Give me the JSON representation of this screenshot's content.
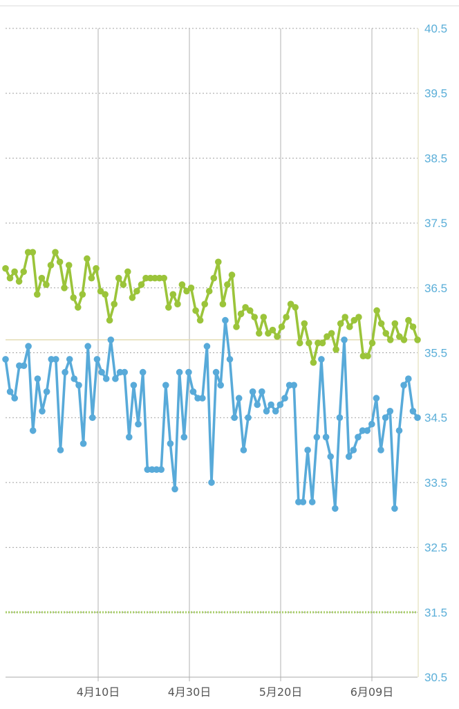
{
  "chart_data": {
    "type": "line",
    "title": "",
    "xlabel": "",
    "ylabel": "",
    "ylim": [
      30.5,
      40.5
    ],
    "yticks": [
      "40.5",
      "39.5",
      "38.5",
      "37.5",
      "36.5",
      "35.5",
      "34.5",
      "33.5",
      "32.5",
      "31.5",
      "30.5"
    ],
    "xticks": [
      "4月10日",
      "4月30日",
      "5月20日",
      "6月09日"
    ],
    "reference_lines": [
      {
        "value": 35.7,
        "color": "#e3dcb4",
        "style": "solid"
      },
      {
        "value": 31.5,
        "color": "#a9cf6a",
        "style": "dotted"
      }
    ],
    "series": [
      {
        "color": "#9bc43a",
        "values": [
          36.8,
          36.65,
          36.75,
          36.6,
          36.75,
          37.05,
          37.05,
          36.4,
          36.65,
          36.55,
          36.85,
          37.05,
          36.9,
          36.5,
          36.85,
          36.35,
          36.2,
          36.4,
          36.95,
          36.65,
          36.8,
          36.45,
          36.4,
          36.0,
          36.25,
          36.65,
          36.55,
          36.75,
          36.35,
          36.45,
          36.55,
          36.65,
          36.65,
          36.65,
          36.65,
          36.65,
          36.2,
          36.4,
          36.25,
          36.55,
          36.45,
          36.5,
          36.15,
          36.0,
          36.25,
          36.45,
          36.65,
          36.9,
          36.25,
          36.55,
          36.7,
          35.9,
          36.1,
          36.2,
          36.15,
          36.05,
          35.8,
          36.05,
          35.8,
          35.85,
          35.75,
          35.9,
          36.05,
          36.25,
          36.2,
          35.65,
          35.95,
          35.65,
          35.35,
          35.65,
          35.65,
          35.75,
          35.8,
          35.55,
          35.95,
          36.05,
          35.9,
          36.0,
          36.05,
          35.45,
          35.45,
          35.65,
          36.15,
          35.95,
          35.8,
          35.7,
          35.95,
          35.75,
          35.7,
          36.0,
          35.9,
          35.7
        ]
      },
      {
        "color": "#58aad9",
        "values": [
          35.4,
          34.9,
          34.8,
          35.3,
          35.3,
          35.6,
          34.3,
          35.1,
          34.6,
          34.9,
          35.4,
          35.4,
          34.0,
          35.2,
          35.4,
          35.1,
          35.0,
          34.1,
          35.6,
          34.5,
          35.4,
          35.2,
          35.1,
          35.7,
          35.1,
          35.2,
          35.2,
          34.2,
          35.0,
          34.4,
          35.2,
          33.7,
          33.7,
          33.7,
          33.7,
          35.0,
          34.1,
          33.4,
          35.2,
          34.2,
          35.2,
          34.9,
          34.8,
          34.8,
          35.6,
          33.5,
          35.2,
          35.0,
          36.0,
          35.4,
          34.5,
          34.8,
          34.0,
          34.5,
          34.9,
          34.7,
          34.9,
          34.6,
          34.7,
          34.6,
          34.7,
          34.8,
          35.0,
          35.0,
          33.2,
          33.2,
          34.0,
          33.2,
          34.2,
          35.4,
          34.2,
          33.9,
          33.1,
          34.5,
          35.7,
          33.9,
          34.0,
          34.2,
          34.3,
          34.3,
          34.4,
          34.8,
          34.0,
          34.5,
          34.6,
          33.1,
          34.3,
          35.0,
          35.1,
          34.6,
          34.5
        ]
      }
    ],
    "grid": true,
    "legend": "none"
  }
}
